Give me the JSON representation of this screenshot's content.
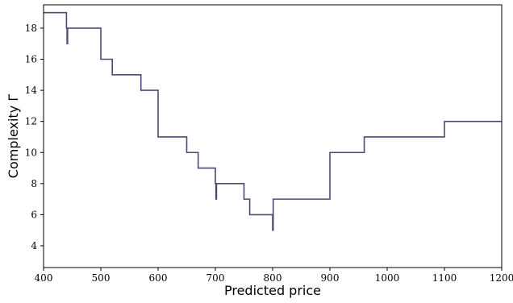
{
  "chart_data": {
    "type": "line",
    "title": "",
    "xlabel": "Predicted price",
    "ylabel": "Complexity Γ",
    "xlim": [
      400,
      1200
    ],
    "ylim": [
      2.6,
      19.5
    ],
    "xticks": [
      400,
      500,
      600,
      700,
      800,
      900,
      1000,
      1100,
      1200
    ],
    "yticks": [
      4,
      6,
      8,
      10,
      12,
      14,
      16,
      18
    ],
    "grid": false,
    "legend": "none",
    "colors": {
      "line": "#4a4a78",
      "axis": "#000000"
    },
    "series": [
      {
        "style": "step",
        "x": [
          400,
          440,
          440,
          441,
          441,
          442,
          442,
          500,
          500,
          520,
          520,
          570,
          570,
          600,
          600,
          650,
          650,
          670,
          670,
          700,
          700,
          701,
          701,
          702,
          702,
          750,
          750,
          760,
          760,
          799,
          799,
          800,
          800,
          801,
          801,
          900,
          900,
          960,
          960,
          1100,
          1100,
          1200
        ],
        "y": [
          19,
          19,
          18,
          18,
          17,
          17,
          18,
          18,
          16,
          16,
          15,
          15,
          14,
          14,
          11,
          11,
          10,
          10,
          9,
          9,
          8,
          8,
          7,
          7,
          8,
          8,
          7,
          7,
          6,
          6,
          6,
          6,
          5,
          5,
          7,
          7,
          10,
          10,
          11,
          11,
          12,
          12
        ]
      }
    ]
  }
}
